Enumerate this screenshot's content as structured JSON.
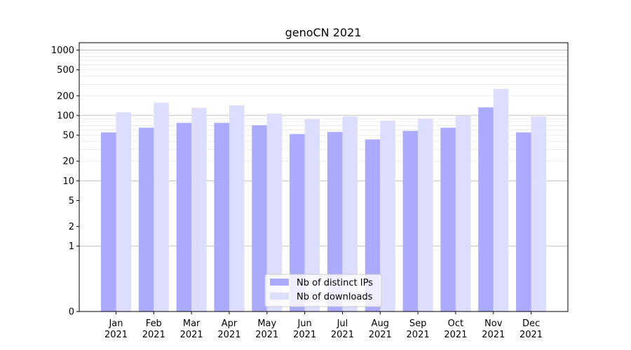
{
  "chart_data": {
    "type": "bar",
    "title": "genoCN 2021",
    "xlabel": "",
    "ylabel": "",
    "y_scale": "symlog",
    "ylim": [
      0,
      1300
    ],
    "grid": true,
    "legend_position": "lower center",
    "categories": [
      {
        "month": "Jan",
        "year": "2021"
      },
      {
        "month": "Feb",
        "year": "2021"
      },
      {
        "month": "Mar",
        "year": "2021"
      },
      {
        "month": "Apr",
        "year": "2021"
      },
      {
        "month": "May",
        "year": "2021"
      },
      {
        "month": "Jun",
        "year": "2021"
      },
      {
        "month": "Jul",
        "year": "2021"
      },
      {
        "month": "Aug",
        "year": "2021"
      },
      {
        "month": "Sep",
        "year": "2021"
      },
      {
        "month": "Oct",
        "year": "2021"
      },
      {
        "month": "Nov",
        "year": "2021"
      },
      {
        "month": "Dec",
        "year": "2021"
      }
    ],
    "y_ticks": [
      {
        "value": 0,
        "label": "0"
      },
      {
        "value": 1,
        "label": "1"
      },
      {
        "value": 2,
        "label": "2"
      },
      {
        "value": 5,
        "label": "5"
      },
      {
        "value": 10,
        "label": "10"
      },
      {
        "value": 20,
        "label": "20"
      },
      {
        "value": 50,
        "label": "50"
      },
      {
        "value": 100,
        "label": "100"
      },
      {
        "value": 200,
        "label": "200"
      },
      {
        "value": 500,
        "label": "500"
      },
      {
        "value": 1000,
        "label": "1000"
      }
    ],
    "series": [
      {
        "name": "Nb of distinct IPs",
        "color": "#aaaaff",
        "values": [
          55,
          65,
          77,
          77,
          71,
          52,
          56,
          43,
          58,
          65,
          133,
          55
        ]
      },
      {
        "name": "Nb of downloads",
        "color": "#ddddff",
        "values": [
          112,
          157,
          131,
          143,
          107,
          88,
          96,
          83,
          89,
          99,
          255,
          96
        ]
      }
    ]
  }
}
